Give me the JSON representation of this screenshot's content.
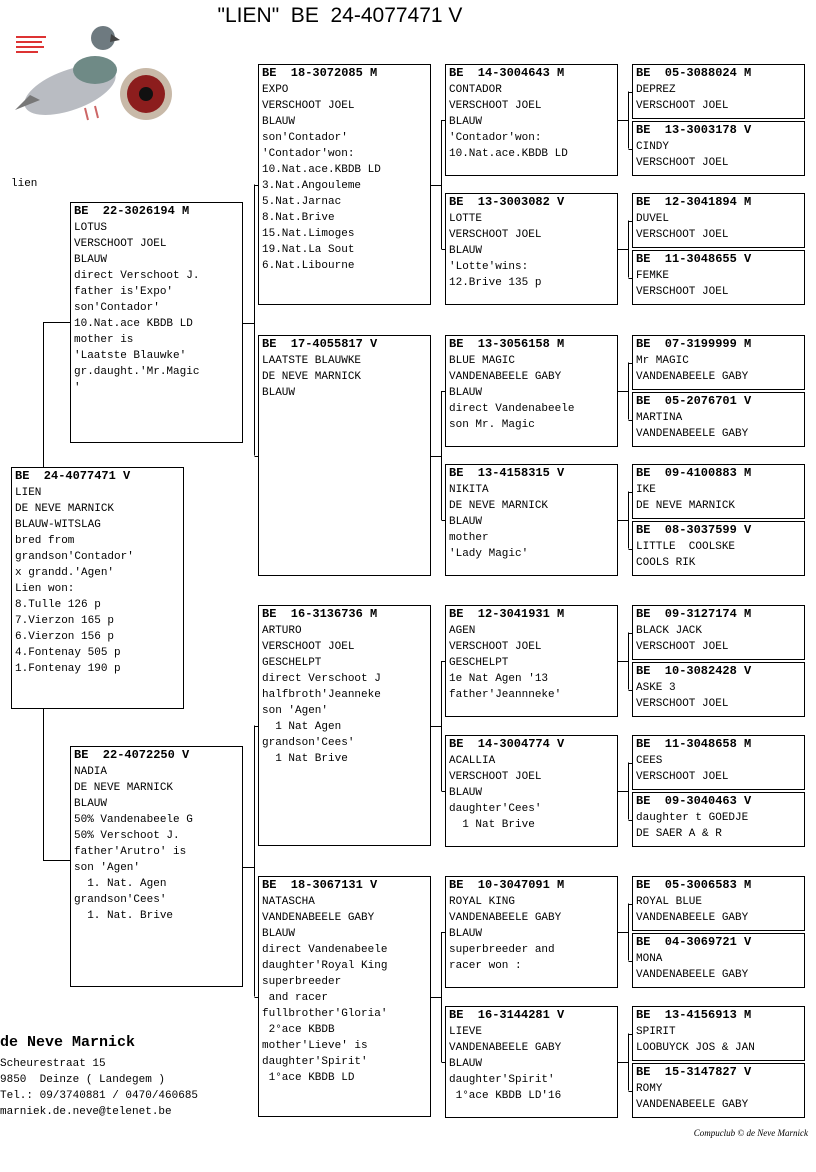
{
  "header": {
    "title": "\"LIEN\"  BE  24-4077471 V",
    "label": "lien"
  },
  "subject": {
    "ring": "BE  24-4077471 V",
    "lines": [
      "LIEN",
      "DE NEVE MARNICK",
      "BLAUW-WITSLAG",
      "bred from",
      "grandson'Contador'",
      "x grandd.'Agen'",
      "Lien won:",
      "8.Tulle 126 p",
      "7.Vierzon 165 p",
      "6.Vierzon 156 p",
      "4.Fontenay 505 p",
      "1.Fontenay 190 p"
    ]
  },
  "parents": [
    {
      "ring": "BE  22-3026194 M",
      "lines": [
        "LOTUS",
        "VERSCHOOT JOEL",
        "BLAUW",
        "direct Verschoot J.",
        "father is'Expo'",
        "son'Contador'",
        "10.Nat.ace KBDB LD",
        "mother is",
        "'Laatste Blauwke'",
        "gr.daught.'Mr.Magic",
        "'"
      ]
    },
    {
      "ring": "BE  22-4072250 V",
      "lines": [
        "NADIA",
        "DE NEVE MARNICK",
        "BLAUW",
        "50% Vandenabeele G",
        "50% Verschoot J.",
        "father'Arutro' is",
        "son 'Agen'",
        "  1. Nat. Agen",
        "grandson'Cees'",
        "  1. Nat. Brive"
      ]
    }
  ],
  "grandparents": [
    {
      "ring": "BE  18-3072085 M",
      "lines": [
        "EXPO",
        "VERSCHOOT JOEL",
        "BLAUW",
        "son'Contador'",
        "'Contador'won:",
        "10.Nat.ace.KBDB LD",
        "3.Nat.Angouleme",
        "5.Nat.Jarnac",
        "8.Nat.Brive",
        "15.Nat.Limoges",
        "19.Nat.La Sout",
        "6.Nat.Libourne"
      ]
    },
    {
      "ring": "BE  17-4055817 V",
      "lines": [
        "LAATSTE BLAUWKE",
        "DE NEVE MARNICK",
        "BLAUW"
      ]
    },
    {
      "ring": "BE  16-3136736 M",
      "lines": [
        "ARTURO",
        "VERSCHOOT JOEL",
        "GESCHELPT",
        "direct Verschoot J",
        "halfbroth'Jeanneke",
        "son 'Agen'",
        "  1 Nat Agen",
        "grandson'Cees'",
        "  1 Nat Brive"
      ]
    },
    {
      "ring": "BE  18-3067131 V",
      "lines": [
        "NATASCHA",
        "VANDENABEELE GABY",
        "BLAUW",
        "direct Vandenabeele",
        "daughter'Royal King",
        "superbreeder",
        " and racer",
        "fullbrother'Gloria'",
        " 2°ace KBDB",
        "mother'Lieve' is",
        "daughter'Spirit'",
        " 1°ace KBDB LD"
      ]
    }
  ],
  "great_grandparents": [
    {
      "ring": "BE  14-3004643 M",
      "lines": [
        "CONTADOR",
        "VERSCHOOT JOEL",
        "BLAUW",
        "'Contador'won:",
        "10.Nat.ace.KBDB LD"
      ]
    },
    {
      "ring": "BE  13-3003082 V",
      "lines": [
        "LOTTE",
        "VERSCHOOT JOEL",
        "BLAUW",
        "'Lotte'wins:",
        "12.Brive 135 p"
      ]
    },
    {
      "ring": "BE  13-3056158 M",
      "lines": [
        "BLUE MAGIC",
        "VANDENABEELE GABY",
        "BLAUW",
        "direct Vandenabeele",
        "son Mr. Magic"
      ]
    },
    {
      "ring": "BE  13-4158315 V",
      "lines": [
        "NIKITA",
        "DE NEVE MARNICK",
        "BLAUW",
        "mother",
        "'Lady Magic'"
      ]
    },
    {
      "ring": "BE  12-3041931 M",
      "lines": [
        "AGEN",
        "VERSCHOOT JOEL",
        "GESCHELPT",
        "1e Nat Agen '13",
        "father'Jeannneke'"
      ]
    },
    {
      "ring": "BE  14-3004774 V",
      "lines": [
        "ACALLIA",
        "VERSCHOOT JOEL",
        "BLAUW",
        "daughter'Cees'",
        "  1 Nat Brive"
      ]
    },
    {
      "ring": "BE  10-3047091 M",
      "lines": [
        "ROYAL KING",
        "VANDENABEELE GABY",
        "BLAUW",
        "superbreeder and",
        "racer won :"
      ]
    },
    {
      "ring": "BE  16-3144281 V",
      "lines": [
        "LIEVE",
        "VANDENABEELE GABY",
        "BLAUW",
        "daughter'Spirit'",
        " 1°ace KBDB LD'16"
      ]
    }
  ],
  "great_great_grandparents": [
    {
      "ring": "BE  05-3088024 M",
      "lines": [
        "DEPREZ",
        "VERSCHOOT JOEL"
      ]
    },
    {
      "ring": "BE  13-3003178 V",
      "lines": [
        "CINDY",
        "VERSCHOOT JOEL"
      ]
    },
    {
      "ring": "BE  12-3041894 M",
      "lines": [
        "DUVEL",
        "VERSCHOOT JOEL"
      ]
    },
    {
      "ring": "BE  11-3048655 V",
      "lines": [
        "FEMKE",
        "VERSCHOOT JOEL"
      ]
    },
    {
      "ring": "BE  07-3199999 M",
      "lines": [
        "Mr MAGIC",
        "VANDENABEELE GABY"
      ]
    },
    {
      "ring": "BE  05-2076701 V",
      "lines": [
        "MARTINA",
        "VANDENABEELE GABY"
      ]
    },
    {
      "ring": "BE  09-4100883 M",
      "lines": [
        "IKE",
        "DE NEVE MARNICK"
      ]
    },
    {
      "ring": "BE  08-3037599 V",
      "lines": [
        "LITTLE  COOLSKE",
        "COOLS RIK"
      ]
    },
    {
      "ring": "BE  09-3127174 M",
      "lines": [
        "BLACK JACK",
        "VERSCHOOT JOEL"
      ]
    },
    {
      "ring": "BE  10-3082428 V",
      "lines": [
        "ASKE 3",
        "VERSCHOOT JOEL"
      ]
    },
    {
      "ring": "BE  11-3048658 M",
      "lines": [
        "CEES",
        "VERSCHOOT JOEL"
      ]
    },
    {
      "ring": "BE  09-3040463 V",
      "lines": [
        "daughter t GOEDJE",
        "DE SAER A & R"
      ]
    },
    {
      "ring": "BE  05-3006583 M",
      "lines": [
        "ROYAL BLUE",
        "VANDENABEELE GABY"
      ]
    },
    {
      "ring": "BE  04-3069721 V",
      "lines": [
        "MONA",
        "VANDENABEELE GABY"
      ]
    },
    {
      "ring": "BE  13-4156913 M",
      "lines": [
        "SPIRIT",
        "LOOBUYCK JOS & JAN"
      ]
    },
    {
      "ring": "BE  15-3147827 V",
      "lines": [
        "ROMY",
        "VANDENABEELE GABY"
      ]
    }
  ],
  "owner": {
    "name": "de Neve Marnick",
    "lines": [
      "Scheurestraat 15",
      "9850  Deinze ( Landegem )",
      "Tel.: 09/3740881 / 0470/460685",
      "marniek.de.neve@telenet.be"
    ]
  },
  "footer": "Compuclub © de Neve Marnick"
}
